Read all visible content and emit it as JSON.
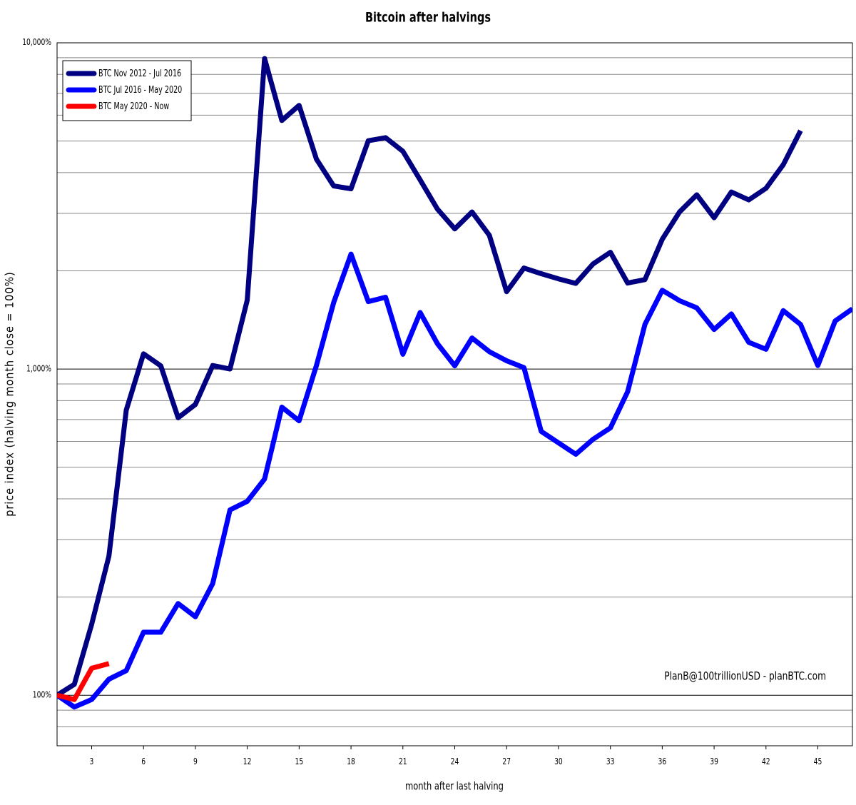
{
  "chart_data": {
    "type": "line",
    "title": "Bitcoin after halvings",
    "x_label": "month after last halving",
    "y_label": "price index (halving month close = 100%)",
    "annotation": "PlanB@100trillionUSD  -  planBTC.com",
    "x": [
      1,
      2,
      3,
      4,
      5,
      6,
      7,
      8,
      9,
      10,
      11,
      12,
      13,
      14,
      15,
      16,
      17,
      18,
      19,
      20,
      21,
      22,
      23,
      24,
      25,
      26,
      27,
      28,
      29,
      30,
      31,
      32,
      33,
      34,
      35,
      36,
      37,
      38,
      39,
      40,
      41,
      42,
      43,
      44,
      45,
      46,
      47
    ],
    "series": [
      {
        "name": "BTC Nov 2012 - Jul 2016",
        "color": "#000080",
        "values": [
          100,
          108,
          165,
          267,
          748,
          1113,
          1023,
          709,
          779,
          1025,
          1000,
          1626,
          8950,
          5780,
          6430,
          4400,
          3640,
          3570,
          5010,
          5120,
          4650,
          3800,
          3090,
          2690,
          3030,
          2570,
          1726,
          2040,
          1960,
          1890,
          1830,
          2100,
          2280,
          1835,
          1880,
          2500,
          3030,
          3420,
          2910,
          3490,
          3300,
          3580,
          4230,
          5380,
          null,
          null,
          null
        ]
      },
      {
        "name": "BTC Jul 2016 - May 2020",
        "color": "#0000ff",
        "values": [
          100,
          92,
          97,
          112,
          119,
          156,
          156,
          191,
          174,
          220,
          370,
          393,
          460,
          764,
          694,
          1025,
          1600,
          2250,
          1610,
          1660,
          1110,
          1490,
          1195,
          1023,
          1245,
          1130,
          1060,
          1010,
          644,
          594,
          548,
          609,
          660,
          853,
          1370,
          1744,
          1620,
          1540,
          1322,
          1475,
          1208,
          1150,
          1510,
          1370,
          1025,
          1404,
          1530
        ]
      },
      {
        "name": "BTC May 2020 - Now",
        "color": "#ff0000",
        "values": [
          100,
          97,
          121,
          125,
          null,
          null,
          null,
          null,
          null,
          null,
          null,
          null,
          null,
          null,
          null,
          null,
          null,
          null,
          null,
          null,
          null,
          null,
          null,
          null,
          null,
          null,
          null,
          null,
          null,
          null,
          null,
          null,
          null,
          null,
          null,
          null,
          null,
          null,
          null,
          null,
          null,
          null,
          null,
          null,
          null,
          null,
          null
        ]
      }
    ],
    "xlim": [
      1,
      47
    ],
    "xticks": [
      3,
      6,
      9,
      12,
      15,
      18,
      21,
      24,
      27,
      30,
      33,
      36,
      39,
      42,
      45
    ],
    "ylim": [
      70,
      10000
    ],
    "log_y": true,
    "yticks": [
      {
        "value": 100,
        "label": "100%"
      },
      {
        "value": 1000,
        "label": "1,000%"
      },
      {
        "value": 10000,
        "label": "10,000%"
      }
    ],
    "y_minor_ticks": [
      80,
      90,
      200,
      300,
      400,
      500,
      600,
      700,
      800,
      900,
      2000,
      3000,
      4000,
      5000,
      6000,
      7000,
      8000,
      9000
    ],
    "grid": true,
    "legend": "upper left"
  }
}
